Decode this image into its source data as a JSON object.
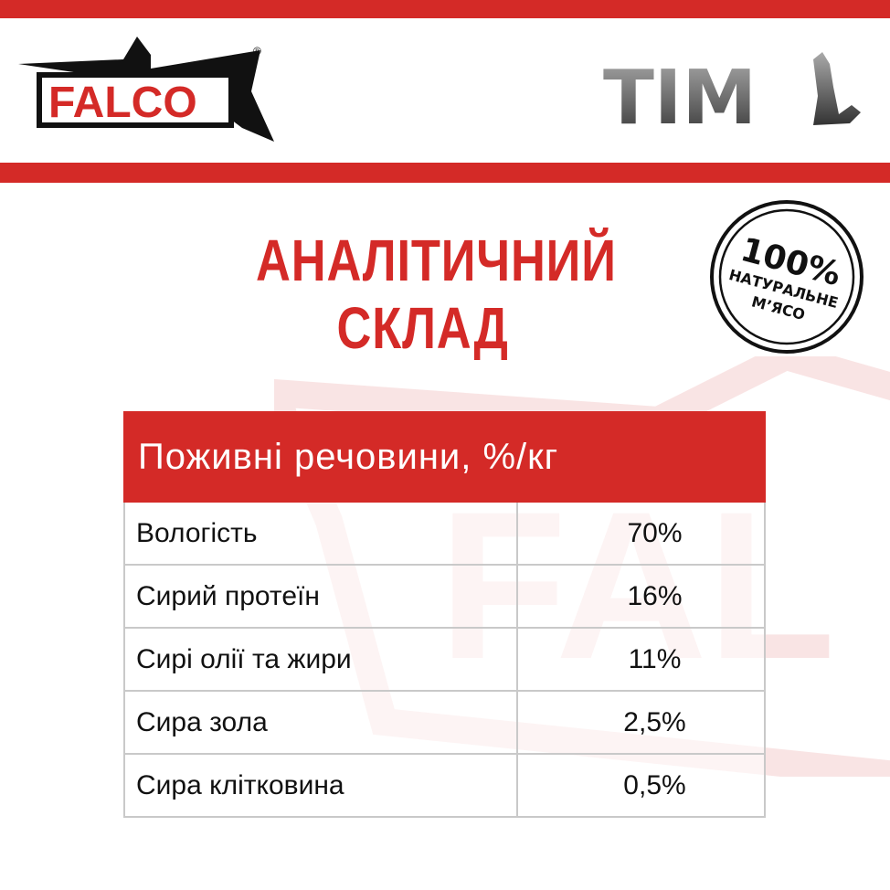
{
  "brands": {
    "left": "FALCO",
    "left_mark": "®",
    "right": "TIM"
  },
  "stamp": {
    "line1": "100%",
    "line2": "НАТУРАЛЬНЕ",
    "line3": "М’ЯСО"
  },
  "title": {
    "line1": "АНАЛІТИЧНИЙ",
    "line2": "СКЛАД"
  },
  "table": {
    "header": "Поживні речовини, %/кг",
    "rows": [
      {
        "name": "Вологість",
        "value": "70%"
      },
      {
        "name": "Сирий протеїн",
        "value": "16%"
      },
      {
        "name": "Сирі олії та жири",
        "value": "11%"
      },
      {
        "name": "Сира зола",
        "value": "2,5%"
      },
      {
        "name": "Сира клітковина",
        "value": "0,5%"
      }
    ]
  },
  "colors": {
    "brand_red": "#d42a27"
  }
}
